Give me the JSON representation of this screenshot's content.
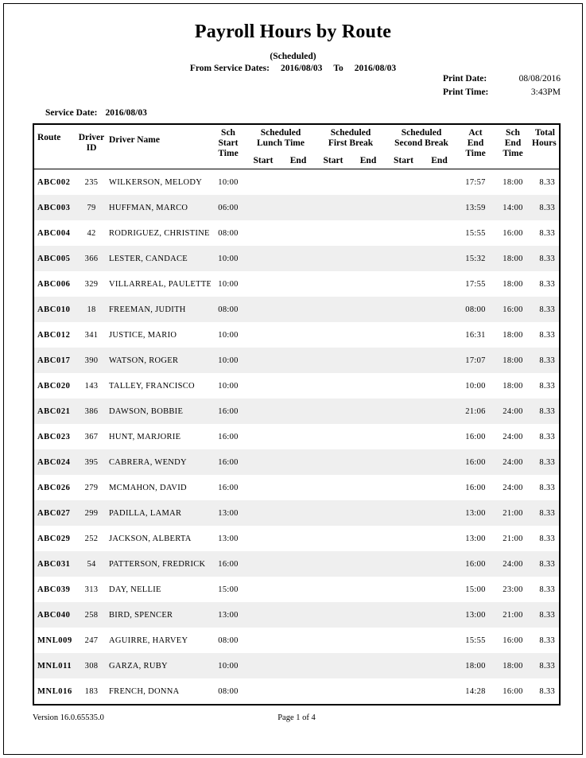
{
  "report": {
    "title": "Payroll Hours by Route",
    "subtitle": "(Scheduled)",
    "from_label": "From Service Dates:",
    "from_date": "2016/08/03",
    "to_label": "To",
    "to_date": "2016/08/03",
    "print_date_label": "Print Date:",
    "print_date": "08/08/2016",
    "print_time_label": "Print Time:",
    "print_time": "3:43PM",
    "service_date_label": "Service Date:",
    "service_date": "2016/08/03",
    "version": "Version 16.0.65535.0",
    "page_number": "Page 1 of 4"
  },
  "colors": {
    "row_alt": "#efefef",
    "border": "#000000",
    "background": "#ffffff"
  },
  "table": {
    "headers": {
      "route": "Route",
      "driver_id": "Driver\nID",
      "driver_name": "Driver Name",
      "sch_start": "Sch\nStart\nTime",
      "lunch_group": "Scheduled\nLunch Time",
      "first_group": "Scheduled\nFirst Break",
      "second_group": "Scheduled\nSecond Break",
      "start": "Start",
      "end": "End",
      "act_end": "Act\nEnd\nTime",
      "sch_end": "Sch\nEnd\nTime",
      "total": "Total\nHours"
    },
    "rows": [
      {
        "route": "ABC002",
        "driver_id": "235",
        "driver_name": "WILKERSON, MELODY",
        "sch_start": "10:00",
        "lunch_start": "",
        "lunch_end": "",
        "first_start": "",
        "first_end": "",
        "second_start": "",
        "second_end": "",
        "act_end": "17:57",
        "sch_end": "18:00",
        "total_hours": "8.33"
      },
      {
        "route": "ABC003",
        "driver_id": "79",
        "driver_name": "HUFFMAN, MARCO",
        "sch_start": "06:00",
        "lunch_start": "",
        "lunch_end": "",
        "first_start": "",
        "first_end": "",
        "second_start": "",
        "second_end": "",
        "act_end": "13:59",
        "sch_end": "14:00",
        "total_hours": "8.33"
      },
      {
        "route": "ABC004",
        "driver_id": "42",
        "driver_name": "RODRIGUEZ, CHRISTINE",
        "sch_start": "08:00",
        "lunch_start": "",
        "lunch_end": "",
        "first_start": "",
        "first_end": "",
        "second_start": "",
        "second_end": "",
        "act_end": "15:55",
        "sch_end": "16:00",
        "total_hours": "8.33"
      },
      {
        "route": "ABC005",
        "driver_id": "366",
        "driver_name": "LESTER, CANDACE",
        "sch_start": "10:00",
        "lunch_start": "",
        "lunch_end": "",
        "first_start": "",
        "first_end": "",
        "second_start": "",
        "second_end": "",
        "act_end": "15:32",
        "sch_end": "18:00",
        "total_hours": "8.33"
      },
      {
        "route": "ABC006",
        "driver_id": "329",
        "driver_name": "VILLARREAL, PAULETTE",
        "sch_start": "10:00",
        "lunch_start": "",
        "lunch_end": "",
        "first_start": "",
        "first_end": "",
        "second_start": "",
        "second_end": "",
        "act_end": "17:55",
        "sch_end": "18:00",
        "total_hours": "8.33"
      },
      {
        "route": "ABC010",
        "driver_id": "18",
        "driver_name": "FREEMAN, JUDITH",
        "sch_start": "08:00",
        "lunch_start": "",
        "lunch_end": "",
        "first_start": "",
        "first_end": "",
        "second_start": "",
        "second_end": "",
        "act_end": "08:00",
        "sch_end": "16:00",
        "total_hours": "8.33"
      },
      {
        "route": "ABC012",
        "driver_id": "341",
        "driver_name": "JUSTICE, MARIO",
        "sch_start": "10:00",
        "lunch_start": "",
        "lunch_end": "",
        "first_start": "",
        "first_end": "",
        "second_start": "",
        "second_end": "",
        "act_end": "16:31",
        "sch_end": "18:00",
        "total_hours": "8.33"
      },
      {
        "route": "ABC017",
        "driver_id": "390",
        "driver_name": "WATSON, ROGER",
        "sch_start": "10:00",
        "lunch_start": "",
        "lunch_end": "",
        "first_start": "",
        "first_end": "",
        "second_start": "",
        "second_end": "",
        "act_end": "17:07",
        "sch_end": "18:00",
        "total_hours": "8.33"
      },
      {
        "route": "ABC020",
        "driver_id": "143",
        "driver_name": "TALLEY, FRANCISCO",
        "sch_start": "10:00",
        "lunch_start": "",
        "lunch_end": "",
        "first_start": "",
        "first_end": "",
        "second_start": "",
        "second_end": "",
        "act_end": "10:00",
        "sch_end": "18:00",
        "total_hours": "8.33"
      },
      {
        "route": "ABC021",
        "driver_id": "386",
        "driver_name": "DAWSON, BOBBIE",
        "sch_start": "16:00",
        "lunch_start": "",
        "lunch_end": "",
        "first_start": "",
        "first_end": "",
        "second_start": "",
        "second_end": "",
        "act_end": "21:06",
        "sch_end": "24:00",
        "total_hours": "8.33"
      },
      {
        "route": "ABC023",
        "driver_id": "367",
        "driver_name": "HUNT, MARJORIE",
        "sch_start": "16:00",
        "lunch_start": "",
        "lunch_end": "",
        "first_start": "",
        "first_end": "",
        "second_start": "",
        "second_end": "",
        "act_end": "16:00",
        "sch_end": "24:00",
        "total_hours": "8.33"
      },
      {
        "route": "ABC024",
        "driver_id": "395",
        "driver_name": "CABRERA, WENDY",
        "sch_start": "16:00",
        "lunch_start": "",
        "lunch_end": "",
        "first_start": "",
        "first_end": "",
        "second_start": "",
        "second_end": "",
        "act_end": "16:00",
        "sch_end": "24:00",
        "total_hours": "8.33"
      },
      {
        "route": "ABC026",
        "driver_id": "279",
        "driver_name": "MCMAHON, DAVID",
        "sch_start": "16:00",
        "lunch_start": "",
        "lunch_end": "",
        "first_start": "",
        "first_end": "",
        "second_start": "",
        "second_end": "",
        "act_end": "16:00",
        "sch_end": "24:00",
        "total_hours": "8.33"
      },
      {
        "route": "ABC027",
        "driver_id": "299",
        "driver_name": "PADILLA, LAMAR",
        "sch_start": "13:00",
        "lunch_start": "",
        "lunch_end": "",
        "first_start": "",
        "first_end": "",
        "second_start": "",
        "second_end": "",
        "act_end": "13:00",
        "sch_end": "21:00",
        "total_hours": "8.33"
      },
      {
        "route": "ABC029",
        "driver_id": "252",
        "driver_name": "JACKSON, ALBERTA",
        "sch_start": "13:00",
        "lunch_start": "",
        "lunch_end": "",
        "first_start": "",
        "first_end": "",
        "second_start": "",
        "second_end": "",
        "act_end": "13:00",
        "sch_end": "21:00",
        "total_hours": "8.33"
      },
      {
        "route": "ABC031",
        "driver_id": "54",
        "driver_name": "PATTERSON, FREDRICK",
        "sch_start": "16:00",
        "lunch_start": "",
        "lunch_end": "",
        "first_start": "",
        "first_end": "",
        "second_start": "",
        "second_end": "",
        "act_end": "16:00",
        "sch_end": "24:00",
        "total_hours": "8.33"
      },
      {
        "route": "ABC039",
        "driver_id": "313",
        "driver_name": "DAY, NELLIE",
        "sch_start": "15:00",
        "lunch_start": "",
        "lunch_end": "",
        "first_start": "",
        "first_end": "",
        "second_start": "",
        "second_end": "",
        "act_end": "15:00",
        "sch_end": "23:00",
        "total_hours": "8.33"
      },
      {
        "route": "ABC040",
        "driver_id": "258",
        "driver_name": "BIRD, SPENCER",
        "sch_start": "13:00",
        "lunch_start": "",
        "lunch_end": "",
        "first_start": "",
        "first_end": "",
        "second_start": "",
        "second_end": "",
        "act_end": "13:00",
        "sch_end": "21:00",
        "total_hours": "8.33"
      },
      {
        "route": "MNL009",
        "driver_id": "247",
        "driver_name": "AGUIRRE, HARVEY",
        "sch_start": "08:00",
        "lunch_start": "",
        "lunch_end": "",
        "first_start": "",
        "first_end": "",
        "second_start": "",
        "second_end": "",
        "act_end": "15:55",
        "sch_end": "16:00",
        "total_hours": "8.33"
      },
      {
        "route": "MNL011",
        "driver_id": "308",
        "driver_name": "GARZA, RUBY",
        "sch_start": "10:00",
        "lunch_start": "",
        "lunch_end": "",
        "first_start": "",
        "first_end": "",
        "second_start": "",
        "second_end": "",
        "act_end": "18:00",
        "sch_end": "18:00",
        "total_hours": "8.33"
      },
      {
        "route": "MNL016",
        "driver_id": "183",
        "driver_name": "FRENCH, DONNA",
        "sch_start": "08:00",
        "lunch_start": "",
        "lunch_end": "",
        "first_start": "",
        "first_end": "",
        "second_start": "",
        "second_end": "",
        "act_end": "14:28",
        "sch_end": "16:00",
        "total_hours": "8.33"
      }
    ]
  }
}
